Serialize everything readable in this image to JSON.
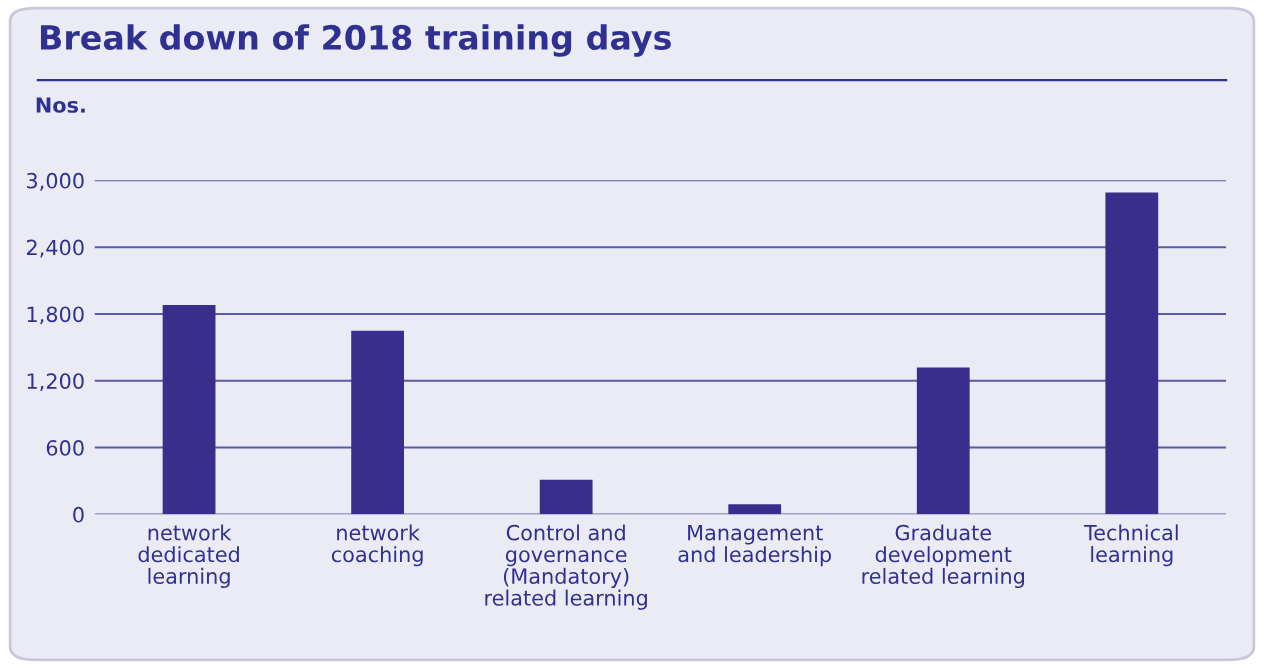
{
  "chart_data": {
    "type": "bar",
    "title": "Break down of 2018 training days",
    "ylabel": "Nos.",
    "categories": [
      "network dedicated learning",
      "network coaching",
      "Control and governance (Mandatory) related learning",
      "Management and leadership",
      "Graduate development related learning",
      "Technical learning"
    ],
    "values": [
      1880,
      1650,
      310,
      90,
      1320,
      2890
    ],
    "color": "#3b2d8c",
    "ylim": [
      0,
      3000
    ],
    "yticks": [
      0,
      {
        "value": 600,
        "label": "600"
      },
      {
        "value": 1200,
        "label": "1,200"
      },
      {
        "value": 1800,
        "label": "1,800"
      },
      {
        "value": 2400,
        "label": "2,400"
      },
      {
        "value": 3000,
        "label": "3,000"
      }
    ],
    "grid": "y"
  }
}
